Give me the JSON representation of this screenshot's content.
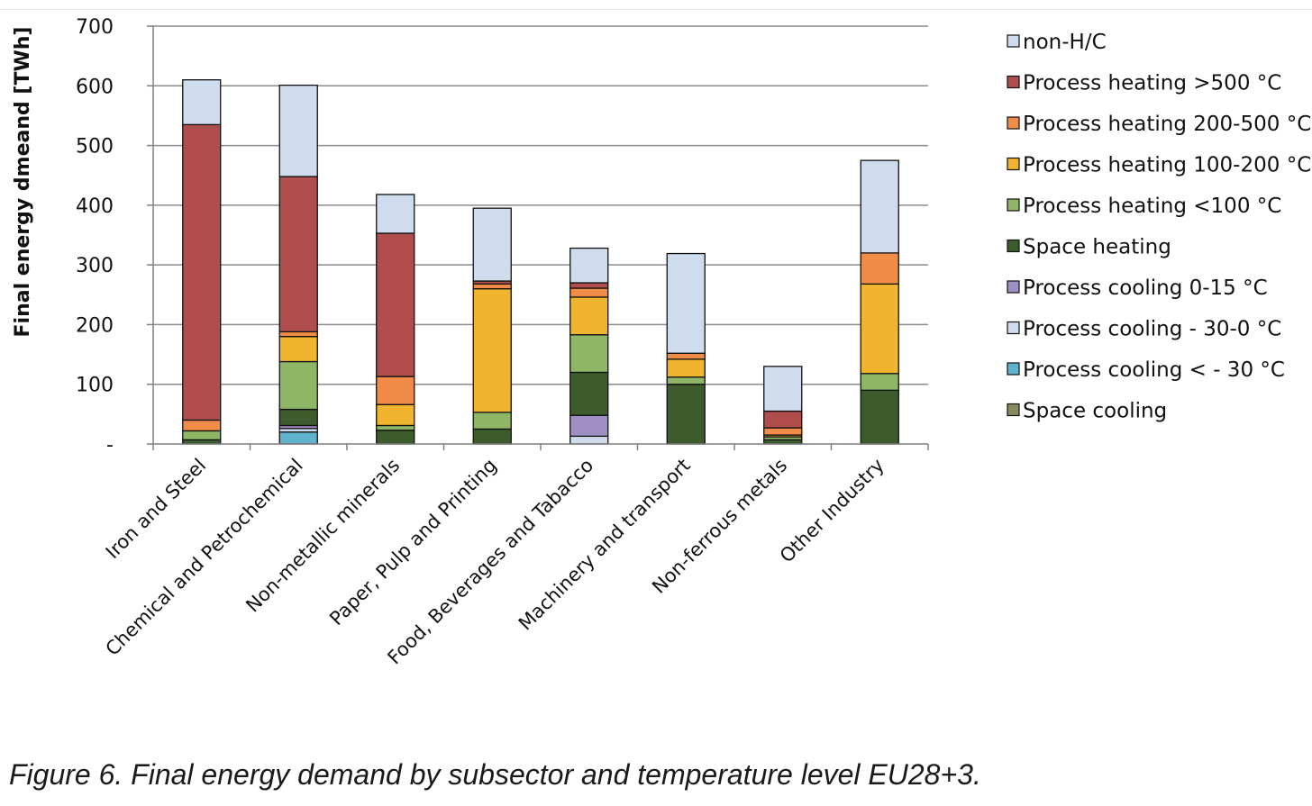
{
  "caption": "Figure 6. Final energy demand by subsector and temperature level EU28+3.",
  "chart_data": {
    "type": "bar",
    "stacked": true,
    "title": "",
    "ylabel": "Final energy dmeand [TWh]",
    "xlabel": "",
    "ylim": [
      0,
      700
    ],
    "yticks": [
      0,
      100,
      200,
      300,
      400,
      500,
      600,
      700
    ],
    "ytick_labels": [
      "-",
      "100",
      "200",
      "300",
      "400",
      "500",
      "600",
      "700"
    ],
    "grid": true,
    "legend_position": "right",
    "categories": [
      "Iron and Steel",
      "Chemical and Petrochemical",
      "Non-metallic minerals",
      "Paper, Pulp and Printing",
      "Food, Beverages and Tabacco",
      "Machinery and transport",
      "Non-ferrous metals",
      "Other Industry"
    ],
    "series": [
      {
        "name": "Space cooling",
        "color": "#8b8a5e",
        "values": [
          0,
          0,
          0,
          0,
          0,
          0,
          0,
          0
        ]
      },
      {
        "name": "Process cooling < - 30 °C",
        "color": "#5fb3cf",
        "values": [
          0,
          20,
          0,
          0,
          0,
          0,
          0,
          0
        ]
      },
      {
        "name": "Process cooling - 30-0 °C",
        "color": "#cfdcee",
        "values": [
          0,
          6,
          0,
          0,
          13,
          0,
          0,
          0
        ]
      },
      {
        "name": "Process cooling 0-15 °C",
        "color": "#9e8fc4",
        "values": [
          0,
          5,
          0,
          0,
          35,
          0,
          0,
          0
        ]
      },
      {
        "name": "Space heating",
        "color": "#3d5c2d",
        "values": [
          7,
          27,
          23,
          25,
          72,
          100,
          7,
          90
        ]
      },
      {
        "name": "Process heating <100 °C",
        "color": "#8fb566",
        "values": [
          15,
          80,
          8,
          28,
          63,
          12,
          5,
          28
        ]
      },
      {
        "name": "Process heating 100-200 °C",
        "color": "#f1b42f",
        "values": [
          0,
          42,
          35,
          207,
          63,
          30,
          3,
          150
        ]
      },
      {
        "name": "Process heating 200-500 °C",
        "color": "#f08c48",
        "values": [
          18,
          8,
          47,
          8,
          15,
          10,
          12,
          52
        ]
      },
      {
        "name": "Process heating >500 °C",
        "color": "#b04e4e",
        "values": [
          495,
          260,
          240,
          5,
          9,
          0,
          28,
          0
        ]
      },
      {
        "name": "non-H/C",
        "color": "#cfdcee",
        "values": [
          75,
          153,
          65,
          122,
          58,
          167,
          75,
          155
        ]
      }
    ],
    "legend_order": [
      "non-H/C",
      "Process heating >500 °C",
      "Process heating 200-500 °C",
      "Process heating 100-200 °C",
      "Process heating <100 °C",
      "Space heating",
      "Process cooling 0-15 °C",
      "Process cooling - 30-0 °C",
      "Process cooling < - 30 °C",
      "Space cooling"
    ]
  }
}
